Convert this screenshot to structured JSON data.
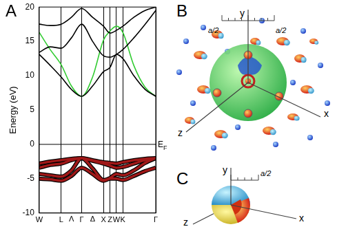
{
  "chart_data": {
    "type": "line",
    "panel_label": "A",
    "y_label": "Energy (eV)",
    "x": [
      0,
      14.5,
      29,
      42.5,
      56,
      70.5,
      85,
      93.5,
      102,
      110.5,
      125,
      140,
      154
    ],
    "xlim": [
      0,
      154
    ],
    "xticks": [
      {
        "value": 0,
        "label": "W"
      },
      {
        "value": 29,
        "label": "L"
      },
      {
        "value": 56,
        "label": "Γ"
      },
      {
        "value": 85,
        "label": "X"
      },
      {
        "value": 93.5,
        "label": "Z"
      },
      {
        "value": 102,
        "label": "W"
      },
      {
        "value": 110.5,
        "label": "K"
      },
      {
        "value": 154,
        "label": "Γ"
      }
    ],
    "ylim": [
      -10,
      20
    ],
    "yticks": [
      -10,
      -5,
      0,
      5,
      10,
      15,
      20
    ],
    "grid": "x",
    "annotations": [
      {
        "text": "Λ",
        "x": 42.5
      },
      {
        "text": "Δ",
        "x": 70.5
      }
    ],
    "reference_line": {
      "y": 0,
      "text": "E",
      "subscript": "F"
    },
    "series": [
      {
        "color": "#000000",
        "line_style": "solid",
        "values": [
          13.1,
          11.5,
          9.8,
          8.0,
          7.0,
          8.5,
          10.6,
          11.2,
          13.1,
          12.5,
          10.0,
          8.0,
          7.0
        ]
      },
      {
        "color": "#000000",
        "line_style": "solid",
        "values": [
          13.4,
          14.2,
          14.0,
          15.5,
          17.5,
          15.0,
          12.9,
          12.7,
          13.1,
          13.8,
          15.5,
          17.5,
          19.5
        ]
      },
      {
        "color": "#000000",
        "line_style": "solid",
        "values": [
          17.5,
          17.3,
          17.5,
          18.5,
          19.8,
          18.5,
          17.2,
          16.2,
          16.6,
          17.2,
          18.5,
          19.5,
          20.0
        ]
      },
      {
        "color": "#33cc33",
        "line_style": "solid",
        "values": [
          16.3,
          13.8,
          11.6,
          8.5,
          7.0,
          9.8,
          15.2,
          16.5,
          17.2,
          16.3,
          11.5,
          8.3,
          7.0
        ]
      },
      {
        "color": "#a01818",
        "line_style": "outlined",
        "values": [
          -2.8,
          -2.5,
          -2.3,
          -2.1,
          -2.0,
          -2.3,
          -2.6,
          -2.7,
          -2.8,
          -2.6,
          -2.3,
          -2.1,
          -2.0
        ]
      },
      {
        "color": "#a01818",
        "line_style": "outlined",
        "values": [
          -3.4,
          -3.0,
          -2.8,
          -2.3,
          -2.0,
          -2.4,
          -2.8,
          -3.1,
          -3.4,
          -3.3,
          -2.8,
          -2.3,
          -2.0
        ]
      },
      {
        "color": "#a01818",
        "line_style": "outlined",
        "values": [
          -4.3,
          -4.5,
          -4.7,
          -3.8,
          -2.0,
          -3.5,
          -5.2,
          -4.9,
          -4.3,
          -4.5,
          -3.8,
          -2.7,
          -2.0
        ]
      },
      {
        "color": "#a01818",
        "line_style": "outlined",
        "values": [
          -5.0,
          -5.1,
          -5.3,
          -4.6,
          -3.4,
          -4.3,
          -5.3,
          -5.0,
          -5.0,
          -5.2,
          -4.6,
          -3.9,
          -3.4
        ]
      }
    ]
  },
  "panels": [
    {
      "panel_label": "B",
      "axis_labels": {
        "x": "x",
        "y": "y",
        "z": "z"
      },
      "scale_labels": [
        "a/2",
        "a/2"
      ]
    },
    {
      "panel_label": "C",
      "axis_labels": {
        "x": "x",
        "y": "y",
        "z": "z"
      },
      "scale_labels": [
        "a/2"
      ]
    }
  ]
}
